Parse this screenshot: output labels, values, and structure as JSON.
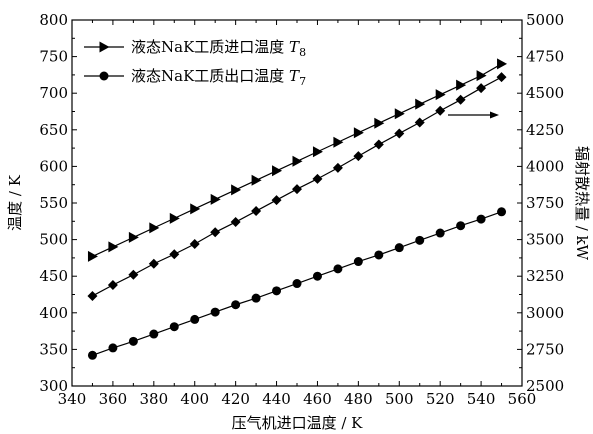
{
  "chart_data": {
    "type": "line",
    "title": "",
    "xlabel": "压气机进口温度 / K",
    "ylabel_left": "温度 / K",
    "ylabel_right": "辐射散热量 / kW",
    "xlim": [
      340,
      560
    ],
    "ylim_left": [
      300,
      800
    ],
    "ylim_right": [
      2500,
      5000
    ],
    "x_ticks": [
      340,
      360,
      380,
      400,
      420,
      440,
      460,
      480,
      500,
      520,
      540,
      560
    ],
    "y_left_ticks": [
      300,
      350,
      400,
      450,
      500,
      550,
      600,
      650,
      700,
      750,
      800
    ],
    "y_right_ticks": [
      2500,
      2750,
      3000,
      3250,
      3500,
      3750,
      4000,
      4250,
      4500,
      4750,
      5000
    ],
    "grid": false,
    "legend_position": "top-left",
    "x": [
      350,
      360,
      370,
      380,
      390,
      400,
      410,
      420,
      430,
      440,
      450,
      460,
      470,
      480,
      490,
      500,
      510,
      520,
      530,
      540,
      550
    ],
    "series": [
      {
        "name": "液态NaK工质进口温度",
        "symbol": "T",
        "subscript": "8",
        "axis": "left",
        "marker": "triangle-right",
        "values": [
          477,
          490,
          503,
          516,
          529,
          542,
          555,
          568,
          581,
          594,
          607,
          620,
          633,
          646,
          659,
          672,
          685,
          698,
          711,
          724,
          740
        ]
      },
      {
        "name": "液态NaK工质出口温度",
        "symbol": "T",
        "subscript": "7",
        "axis": "left",
        "marker": "circle",
        "values": [
          342,
          352,
          361,
          371,
          381,
          391,
          401,
          411,
          420,
          430,
          440,
          450,
          460,
          470,
          479,
          489,
          499,
          509,
          519,
          528,
          538
        ]
      },
      {
        "name": "",
        "axis": "right",
        "marker": "diamond",
        "values": [
          3115,
          3190,
          3260,
          3335,
          3400,
          3470,
          3550,
          3620,
          3695,
          3770,
          3845,
          3915,
          3990,
          4070,
          4150,
          4225,
          4300,
          4380,
          4455,
          4535,
          4610
        ]
      }
    ],
    "annotation": {
      "type": "arrow",
      "direction": "right",
      "meaning": "right-axis series"
    }
  }
}
